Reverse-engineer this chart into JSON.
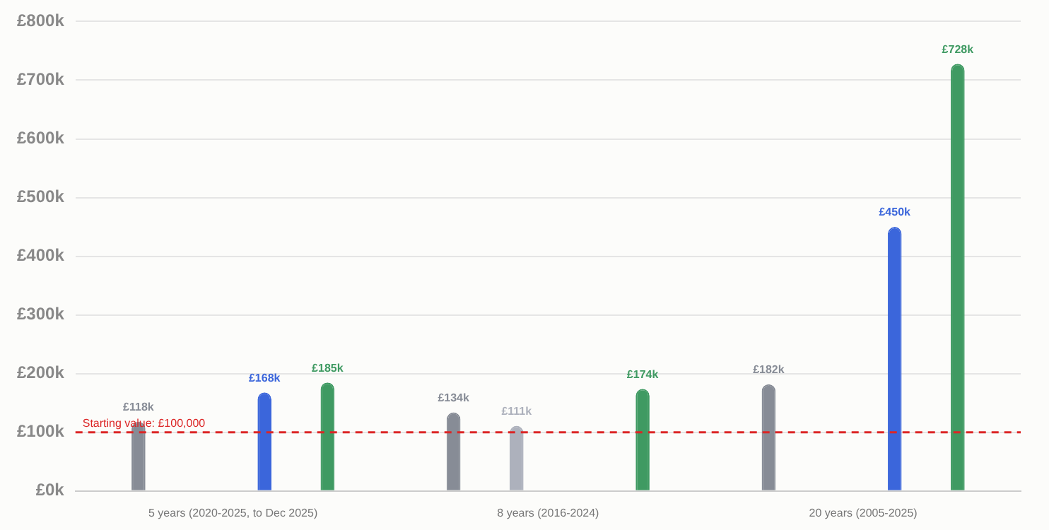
{
  "chart_data": {
    "type": "bar",
    "categories": [
      "5 years (2020-2025, to Dec 2025)",
      "8 years (2016-2024)",
      "20 years (2005-2025)"
    ],
    "series": [
      {
        "color": "#878c96",
        "values": [
          118,
          134,
          182
        ],
        "value_labels": [
          "£118k",
          "£134k",
          "£182k"
        ]
      },
      {
        "color": "#adb1bc",
        "values": [
          null,
          111,
          null
        ],
        "value_labels": [
          null,
          "£111k",
          null
        ]
      },
      {
        "color": "#3b66db",
        "values": [
          168,
          null,
          450
        ],
        "value_labels": [
          "£168k",
          null,
          "£450k"
        ]
      },
      {
        "color": "#3f9a62",
        "values": [
          185,
          174,
          728
        ],
        "value_labels": [
          "£185k",
          "£174k",
          "£728k"
        ]
      }
    ],
    "ylim": [
      0,
      800
    ],
    "yticks": [
      {
        "value": 0,
        "label": "£0k"
      },
      {
        "value": 100,
        "label": "£100k"
      },
      {
        "value": 200,
        "label": "£200k"
      },
      {
        "value": 300,
        "label": "£300k"
      },
      {
        "value": 400,
        "label": "£400k"
      },
      {
        "value": 500,
        "label": "£500k"
      },
      {
        "value": 600,
        "label": "£600k"
      },
      {
        "value": 700,
        "label": "£700k"
      },
      {
        "value": 800,
        "label": "£800k"
      }
    ],
    "ref_lines": [
      {
        "axis": "y",
        "value": 100,
        "label": "Starting value: £100,000",
        "color": "#dc2626",
        "line_style": "dashed"
      }
    ],
    "grid": "y"
  }
}
